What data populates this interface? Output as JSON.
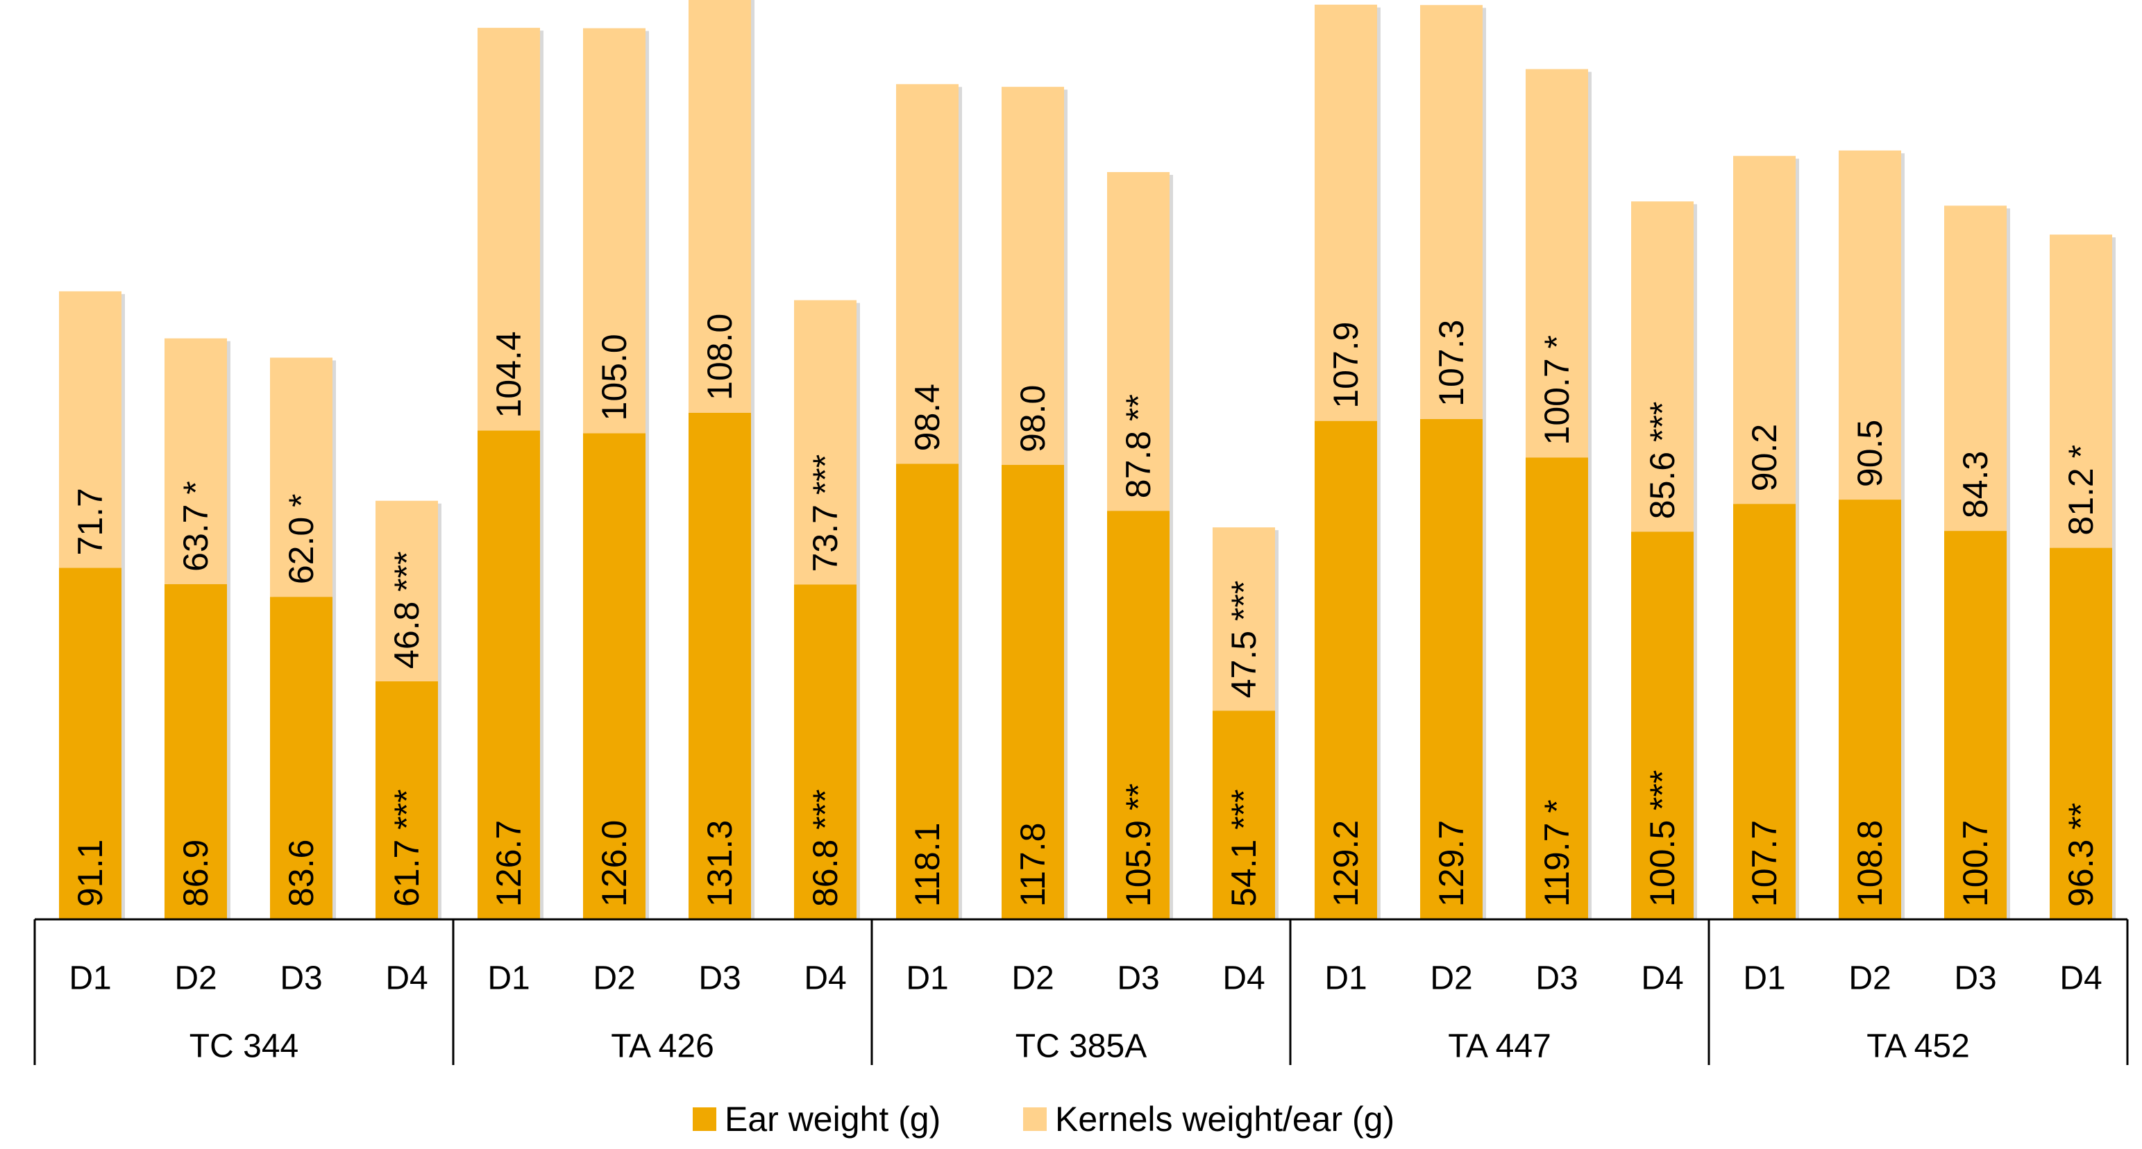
{
  "chart_data": {
    "type": "bar",
    "stacked": true,
    "title": "",
    "xlabel": "",
    "ylabel": "",
    "ylim": [
      0,
      240
    ],
    "grid": false,
    "legend_position": "bottom",
    "groups": [
      "TC 344",
      "TA 426",
      "TC 385A",
      "TA 447",
      "TA 452"
    ],
    "subcategories": [
      "D1",
      "D2",
      "D3",
      "D4"
    ],
    "colors": {
      "ear": "#F0A800",
      "kernels": "#FFD28C",
      "axis": "#000000"
    },
    "series": [
      {
        "name": "Ear weight (g)",
        "values": [
          91.1,
          86.9,
          83.6,
          61.7,
          126.7,
          126.0,
          131.3,
          86.8,
          118.1,
          117.8,
          105.9,
          54.1,
          129.2,
          129.7,
          119.7,
          100.5,
          107.7,
          108.8,
          100.7,
          96.3
        ],
        "labels": [
          "91.1",
          "86.9",
          "83.6",
          "61.7 ***",
          "126.7",
          "126.0",
          "131.3",
          "86.8 ***",
          "118.1",
          "117.8",
          "105.9 **",
          "54.1 ***",
          "129.2",
          "129.7",
          "119.7 *",
          "100.5 ***",
          "107.7",
          "108.8",
          "100.7",
          "96.3 **"
        ]
      },
      {
        "name": "Kernels weight/ear (g)",
        "values": [
          71.7,
          63.7,
          62.0,
          46.8,
          104.4,
          105.0,
          108.0,
          73.7,
          98.4,
          98.0,
          87.8,
          47.5,
          107.9,
          107.3,
          100.7,
          85.6,
          90.2,
          90.5,
          84.3,
          81.2
        ],
        "labels": [
          "71.7",
          "63.7 *",
          "62.0 *",
          "46.8 ***",
          "104.4",
          "105.0",
          "108.0",
          "73.7 ***",
          "98.4",
          "98.0",
          "87.8 **",
          "47.5 ***",
          "107.9",
          "107.3",
          "100.7 *",
          "85.6 ***",
          "90.2",
          "90.5",
          "84.3",
          "81.2 *"
        ]
      }
    ]
  }
}
